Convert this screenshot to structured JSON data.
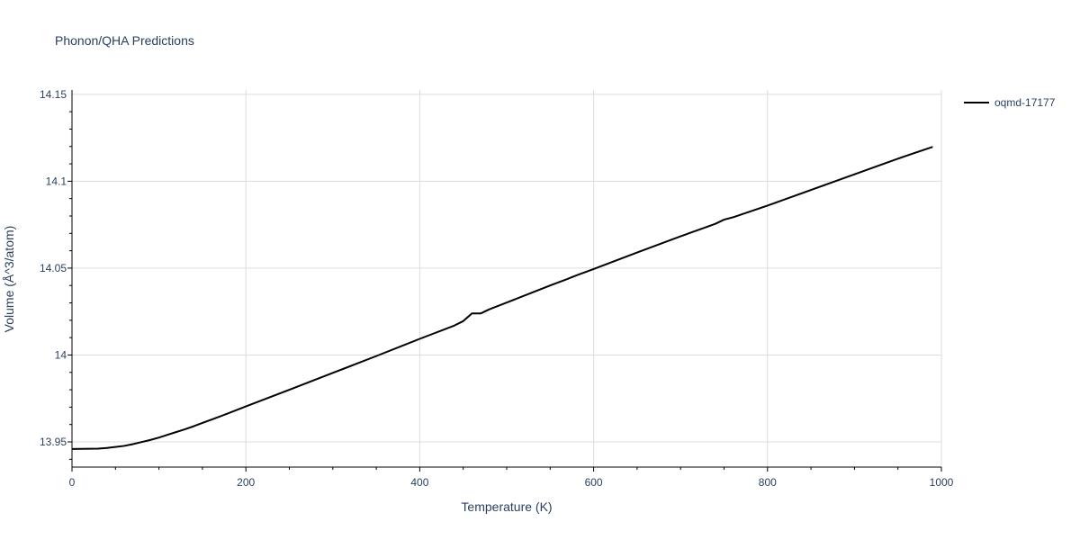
{
  "chart_data": {
    "type": "line",
    "title": "Phonon/QHA Predictions",
    "xlabel": "Temperature (K)",
    "ylabel": "Volume (Å^3/atom)",
    "xlim": [
      0,
      1000
    ],
    "ylim": [
      13.9355,
      14.1525
    ],
    "xticks": [
      0,
      200,
      400,
      600,
      800,
      1000
    ],
    "xtick_labels": [
      "0",
      "200",
      "400",
      "600",
      "800",
      "1000"
    ],
    "yticks": [
      13.95,
      14.0,
      14.05,
      14.1,
      14.15
    ],
    "ytick_labels": [
      "13.95",
      "14",
      "14.05",
      "14.1",
      "14.15"
    ],
    "grid": true,
    "legend_position": "top-right",
    "series": [
      {
        "name": "oqmd-17177",
        "color": "#000000",
        "x": [
          0,
          10,
          30,
          40,
          50,
          60,
          70,
          80,
          90,
          100,
          110,
          120,
          130,
          140,
          150,
          170,
          200,
          250,
          300,
          350,
          400,
          440,
          450,
          460,
          470,
          480,
          500,
          550,
          570,
          580,
          600,
          650,
          700,
          740,
          750,
          760,
          800,
          850,
          900,
          950,
          990
        ],
        "y": [
          13.9459,
          13.946,
          13.9461,
          13.9465,
          13.9471,
          13.9477,
          13.9487,
          13.9499,
          13.9511,
          13.9525,
          13.9541,
          13.9557,
          13.9573,
          13.959,
          13.9609,
          13.9646,
          13.9704,
          13.98,
          13.9897,
          13.9994,
          14.0093,
          14.017,
          14.0195,
          14.0239,
          14.0239,
          14.0263,
          14.0302,
          14.04,
          14.0438,
          14.0458,
          14.0495,
          14.059,
          14.0683,
          14.0755,
          14.0779,
          14.0792,
          14.086,
          14.095,
          14.104,
          14.113,
          14.1198
        ]
      }
    ]
  }
}
